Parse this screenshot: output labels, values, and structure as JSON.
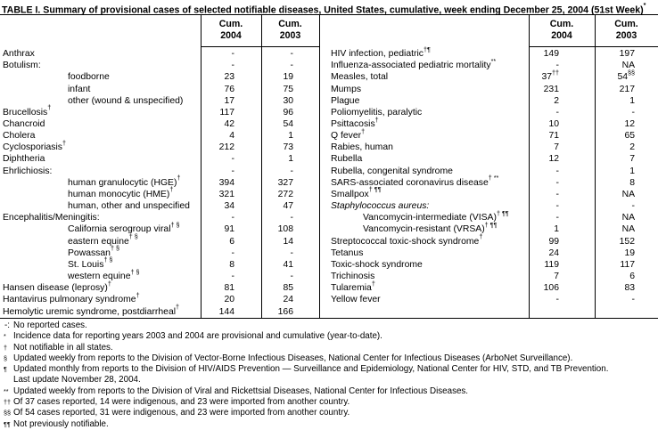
{
  "title": {
    "text": "TABLE I. Summary of provisional cases of selected notifiable diseases, United States, cumulative, week ending December 25, 2004 (51st Week)",
    "sup": "*"
  },
  "table": {
    "headers": {
      "cum": "Cum.",
      "year_2004": "2004",
      "year_2003": "2003"
    },
    "left_rows": [
      {
        "label": "Anthrax",
        "v04": "-",
        "v03": "-"
      },
      {
        "label": "Botulism:",
        "v04": "-",
        "v03": "-"
      },
      {
        "label": "foodborne",
        "indent": true,
        "v04": "23",
        "v03": "19"
      },
      {
        "label": "infant",
        "indent": true,
        "v04": "76",
        "v03": "75"
      },
      {
        "label": "other (wound & unspecified)",
        "indent": true,
        "v04": "17",
        "v03": "30"
      },
      {
        "label": "Brucellosis",
        "sup": "†",
        "v04": "117",
        "v03": "96"
      },
      {
        "label": "Chancroid",
        "v04": "42",
        "v03": "54"
      },
      {
        "label": "Cholera",
        "v04": "4",
        "v03": "1"
      },
      {
        "label": "Cyclosporiasis",
        "sup": "†",
        "v04": "212",
        "v03": "73"
      },
      {
        "label": "Diphtheria",
        "v04": "-",
        "v03": "1"
      },
      {
        "label": "Ehrlichiosis:",
        "v04": "-",
        "v03": "-"
      },
      {
        "label": "human granulocytic (HGE)",
        "sup": "†",
        "indent": true,
        "v04": "394",
        "v03": "327"
      },
      {
        "label": "human monocytic (HME)",
        "sup": "†",
        "indent": true,
        "v04": "321",
        "v03": "272"
      },
      {
        "label": "human, other and unspecified",
        "indent": true,
        "v04": "34",
        "v03": "47"
      },
      {
        "label": "Encephalitis/Meningitis:",
        "v04": "-",
        "v03": "-"
      },
      {
        "label": "California serogroup viral",
        "sup": "† §",
        "indent": true,
        "v04": "91",
        "v03": "108"
      },
      {
        "label": "eastern equine",
        "sup": "† §",
        "indent": true,
        "v04": "6",
        "v03": "14"
      },
      {
        "label": "Powassan",
        "sup": "† §",
        "indent": true,
        "v04": "-",
        "v03": "-"
      },
      {
        "label": "St. Louis",
        "sup": "† §",
        "indent": true,
        "v04": "8",
        "v03": "41"
      },
      {
        "label": "western equine",
        "sup": "† §",
        "indent": true,
        "v04": "-",
        "v03": "-"
      },
      {
        "label": "Hansen disease (leprosy)",
        "sup": "†",
        "v04": "81",
        "v03": "85"
      },
      {
        "label": "Hantavirus pulmonary syndrome",
        "sup": "†",
        "v04": "20",
        "v03": "24"
      },
      {
        "label": "Hemolytic uremic syndrome, postdiarrheal",
        "sup": "†",
        "v04": "144",
        "v03": "166"
      }
    ],
    "right_rows": [
      {
        "label": "HIV infection, pediatric",
        "sup": "†¶",
        "v04": "149",
        "v03": "197"
      },
      {
        "label": "Influenza-associated pediatric mortality",
        "sup": "**",
        "v04": "-",
        "v03": "NA"
      },
      {
        "label": "Measles, total",
        "v04": "37",
        "v04sup": "††",
        "v03": "54",
        "v03sup": "§§"
      },
      {
        "label": "Mumps",
        "v04": "231",
        "v03": "217"
      },
      {
        "label": "Plague",
        "v04": "2",
        "v03": "1"
      },
      {
        "label": "Poliomyelitis, paralytic",
        "v04": "-",
        "v03": "-"
      },
      {
        "label": "Psittacosis",
        "sup": "†",
        "v04": "10",
        "v03": "12"
      },
      {
        "label": "Q fever",
        "sup": "†",
        "v04": "71",
        "v03": "65"
      },
      {
        "label": "Rabies, human",
        "v04": "7",
        "v03": "2"
      },
      {
        "label": "Rubella",
        "v04": "12",
        "v03": "7"
      },
      {
        "label": "Rubella, congenital syndrome",
        "v04": "-",
        "v03": "1"
      },
      {
        "label": "SARS-associated coronavirus disease",
        "sup": "† **",
        "v04": "-",
        "v03": "8"
      },
      {
        "label": "Smallpox",
        "sup": "† ¶¶",
        "v04": "-",
        "v03": "NA"
      },
      {
        "label": "Staphylococcus aureus:",
        "italic": true,
        "v04": "-",
        "v03": "-"
      },
      {
        "label": "Vancomycin-intermediate (VISA)",
        "sup": "† ¶¶",
        "indent": true,
        "v04": "-",
        "v03": "NA"
      },
      {
        "label": "Vancomycin-resistant (VRSA)",
        "sup": "† ¶¶",
        "indent": true,
        "v04": "1",
        "v03": "NA"
      },
      {
        "label": "Streptococcal toxic-shock syndrome",
        "sup": "†",
        "v04": "99",
        "v03": "152"
      },
      {
        "label": "Tetanus",
        "v04": "24",
        "v03": "19"
      },
      {
        "label": "Toxic-shock syndrome",
        "v04": "119",
        "v03": "117"
      },
      {
        "label": "Trichinosis",
        "v04": "7",
        "v03": "6"
      },
      {
        "label": "Tularemia",
        "sup": "†",
        "v04": "106",
        "v03": "83"
      },
      {
        "label": "Yellow fever",
        "v04": "-",
        "v03": "-"
      }
    ]
  },
  "footnotes": [
    {
      "marker": "-:",
      "plain": true,
      "text": "No reported cases."
    },
    {
      "marker": "*",
      "text": "Incidence data for reporting years 2003 and 2004 are provisional and cumulative (year-to-date)."
    },
    {
      "marker": "†",
      "text": "Not notifiable in all states."
    },
    {
      "marker": "§",
      "text": "Updated weekly from reports to the Division of Vector-Borne Infectious Diseases, National Center for Infectious Diseases (ArboNet Surveillance)."
    },
    {
      "marker": "¶",
      "text": "Updated monthly from reports to the Division of HIV/AIDS Prevention — Surveillance and Epidemiology, National Center for HIV, STD, and TB Prevention."
    },
    {
      "marker": "",
      "text": "Last update November 28, 2004."
    },
    {
      "marker": "**",
      "text": "Updated weekly from reports to the Division of Viral and Rickettsial Diseases, National Center for Infectious Diseases."
    },
    {
      "marker": "††",
      "text": "Of 37 cases reported, 14 were indigenous, and 23 were imported from another country."
    },
    {
      "marker": "§§",
      "text": "Of 54 cases reported, 31 were indigenous, and 23 were imported from another country."
    },
    {
      "marker": "¶¶",
      "text": "Not previously notifiable."
    }
  ]
}
